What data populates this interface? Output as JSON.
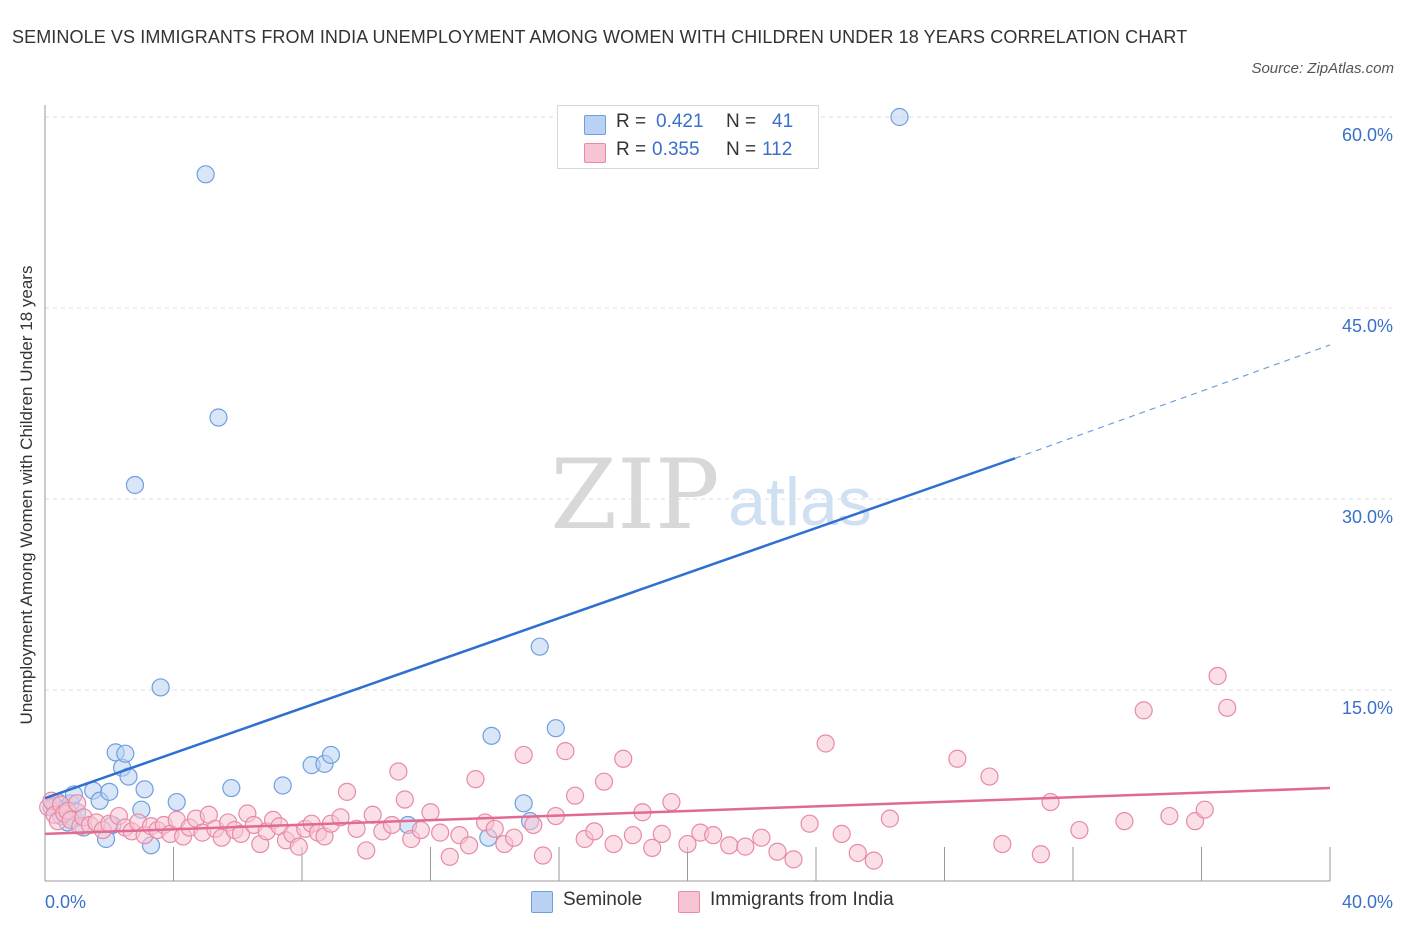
{
  "title": "SEMINOLE VS IMMIGRANTS FROM INDIA UNEMPLOYMENT AMONG WOMEN WITH CHILDREN UNDER 18 YEARS CORRELATION CHART",
  "source": "Source: ZipAtlas.com",
  "watermark": {
    "zip": "ZIP",
    "atlas": "atlas"
  },
  "legend": {
    "r_label": "R =",
    "n_label": "N =",
    "seminole": {
      "r": "0.421",
      "n": "41"
    },
    "india": {
      "r": "0.355",
      "n": "112"
    }
  },
  "chart_data": {
    "type": "scatter",
    "title": "SEMINOLE VS IMMIGRANTS FROM INDIA UNEMPLOYMENT AMONG WOMEN WITH CHILDREN UNDER 18 YEARS CORRELATION CHART",
    "xlabel": "",
    "ylabel": "Unemployment Among Women with Children Under 18 years",
    "xlim": [
      0,
      40
    ],
    "ylim": [
      0,
      60
    ],
    "x_tick_labels": [
      "0.0%",
      "40.0%"
    ],
    "y_tick_values": [
      15,
      30,
      45,
      60
    ],
    "y_tick_labels": [
      "15.0%",
      "30.0%",
      "45.0%",
      "60.0%"
    ],
    "grid": true,
    "legend_position": "top-center",
    "series": [
      {
        "name": "Seminole",
        "color": "#6f9fdf",
        "fill": "#b9d2f3",
        "r": 0.421,
        "n": 41,
        "trend": {
          "x0": 0,
          "y0": 6.5,
          "x1": 30.2,
          "y1": 33.2,
          "dash_to_x": 40,
          "dash_to_y": 42.1
        },
        "points": [
          [
            0.2,
            5.8
          ],
          [
            0.4,
            6.2
          ],
          [
            0.5,
            5.1
          ],
          [
            0.6,
            5.6
          ],
          [
            0.8,
            6.1
          ],
          [
            0.9,
            4.9
          ],
          [
            1.0,
            5.4
          ],
          [
            0.7,
            4.6
          ],
          [
            0.3,
            5.9
          ],
          [
            0.9,
            6.8
          ],
          [
            1.2,
            4.2
          ],
          [
            1.5,
            7.1
          ],
          [
            1.7,
            6.3
          ],
          [
            1.9,
            3.3
          ],
          [
            2.0,
            7.0
          ],
          [
            2.1,
            4.4
          ],
          [
            2.2,
            10.1
          ],
          [
            2.4,
            8.9
          ],
          [
            2.5,
            10.0
          ],
          [
            2.6,
            8.2
          ],
          [
            2.8,
            31.1
          ],
          [
            3.0,
            5.6
          ],
          [
            3.1,
            7.2
          ],
          [
            3.3,
            2.8
          ],
          [
            3.6,
            15.2
          ],
          [
            4.1,
            6.2
          ],
          [
            5.0,
            55.5
          ],
          [
            5.4,
            36.4
          ],
          [
            5.8,
            7.3
          ],
          [
            7.4,
            7.5
          ],
          [
            8.3,
            9.1
          ],
          [
            8.7,
            9.2
          ],
          [
            8.9,
            9.9
          ],
          [
            11.3,
            4.4
          ],
          [
            13.8,
            3.4
          ],
          [
            13.9,
            11.4
          ],
          [
            14.9,
            6.1
          ],
          [
            15.1,
            4.7
          ],
          [
            15.4,
            18.4
          ],
          [
            15.9,
            12.0
          ],
          [
            26.6,
            60.0
          ]
        ]
      },
      {
        "name": "Immigrants from India",
        "color": "#e88aa6",
        "fill": "#f7c4d4",
        "r": 0.355,
        "n": 112,
        "trend": {
          "x0": 0,
          "y0": 3.7,
          "x1": 40,
          "y1": 7.3
        },
        "points": [
          [
            0.1,
            5.8
          ],
          [
            0.2,
            6.3
          ],
          [
            0.3,
            5.2
          ],
          [
            0.4,
            4.7
          ],
          [
            0.5,
            6.0
          ],
          [
            0.6,
            5.3
          ],
          [
            0.7,
            5.5
          ],
          [
            0.8,
            4.8
          ],
          [
            1.0,
            6.1
          ],
          [
            1.1,
            4.3
          ],
          [
            1.2,
            5.0
          ],
          [
            1.4,
            4.4
          ],
          [
            1.6,
            4.6
          ],
          [
            1.8,
            4.0
          ],
          [
            2.0,
            4.5
          ],
          [
            2.3,
            5.1
          ],
          [
            2.5,
            4.2
          ],
          [
            2.7,
            3.9
          ],
          [
            2.9,
            4.6
          ],
          [
            3.1,
            3.6
          ],
          [
            3.3,
            4.3
          ],
          [
            3.5,
            4.0
          ],
          [
            3.7,
            4.4
          ],
          [
            3.9,
            3.7
          ],
          [
            4.1,
            4.8
          ],
          [
            4.3,
            3.5
          ],
          [
            4.5,
            4.2
          ],
          [
            4.7,
            4.9
          ],
          [
            4.9,
            3.8
          ],
          [
            5.1,
            5.2
          ],
          [
            5.3,
            4.1
          ],
          [
            5.5,
            3.4
          ],
          [
            5.7,
            4.6
          ],
          [
            5.9,
            4.0
          ],
          [
            6.1,
            3.7
          ],
          [
            6.3,
            5.3
          ],
          [
            6.5,
            4.4
          ],
          [
            6.7,
            2.9
          ],
          [
            6.9,
            3.9
          ],
          [
            7.1,
            4.8
          ],
          [
            7.3,
            4.3
          ],
          [
            7.5,
            3.2
          ],
          [
            7.7,
            3.7
          ],
          [
            7.9,
            2.7
          ],
          [
            8.1,
            4.1
          ],
          [
            8.3,
            4.5
          ],
          [
            8.5,
            3.8
          ],
          [
            8.7,
            3.5
          ],
          [
            8.9,
            4.5
          ],
          [
            9.2,
            5.0
          ],
          [
            9.4,
            7.0
          ],
          [
            9.7,
            4.1
          ],
          [
            10.0,
            2.4
          ],
          [
            10.2,
            5.2
          ],
          [
            10.5,
            3.9
          ],
          [
            10.8,
            4.4
          ],
          [
            11.0,
            8.6
          ],
          [
            11.2,
            6.4
          ],
          [
            11.4,
            3.3
          ],
          [
            11.7,
            4.0
          ],
          [
            12.0,
            5.4
          ],
          [
            12.3,
            3.8
          ],
          [
            12.6,
            1.9
          ],
          [
            12.9,
            3.6
          ],
          [
            13.2,
            2.8
          ],
          [
            13.4,
            8.0
          ],
          [
            13.7,
            4.6
          ],
          [
            14.0,
            4.1
          ],
          [
            14.3,
            2.9
          ],
          [
            14.6,
            3.4
          ],
          [
            14.9,
            9.9
          ],
          [
            15.2,
            4.4
          ],
          [
            15.5,
            2.0
          ],
          [
            15.9,
            5.1
          ],
          [
            16.2,
            10.2
          ],
          [
            16.5,
            6.7
          ],
          [
            16.8,
            3.3
          ],
          [
            17.1,
            3.9
          ],
          [
            17.4,
            7.8
          ],
          [
            17.7,
            2.9
          ],
          [
            18.0,
            9.6
          ],
          [
            18.3,
            3.6
          ],
          [
            18.6,
            5.4
          ],
          [
            18.9,
            2.6
          ],
          [
            19.2,
            3.7
          ],
          [
            19.5,
            6.2
          ],
          [
            20.0,
            2.9
          ],
          [
            20.4,
            3.8
          ],
          [
            20.8,
            3.6
          ],
          [
            21.3,
            2.8
          ],
          [
            21.8,
            2.7
          ],
          [
            22.3,
            3.4
          ],
          [
            22.8,
            2.3
          ],
          [
            23.3,
            1.7
          ],
          [
            23.8,
            4.5
          ],
          [
            24.3,
            10.8
          ],
          [
            24.8,
            3.7
          ],
          [
            25.3,
            2.2
          ],
          [
            25.8,
            1.6
          ],
          [
            26.3,
            4.9
          ],
          [
            28.4,
            9.6
          ],
          [
            29.4,
            8.2
          ],
          [
            29.8,
            2.9
          ],
          [
            31.0,
            2.1
          ],
          [
            31.3,
            6.2
          ],
          [
            32.2,
            4.0
          ],
          [
            33.6,
            4.7
          ],
          [
            34.2,
            13.4
          ],
          [
            35.0,
            5.1
          ],
          [
            35.8,
            4.7
          ],
          [
            36.1,
            5.6
          ],
          [
            36.8,
            13.6
          ],
          [
            36.5,
            16.1
          ]
        ]
      }
    ]
  }
}
